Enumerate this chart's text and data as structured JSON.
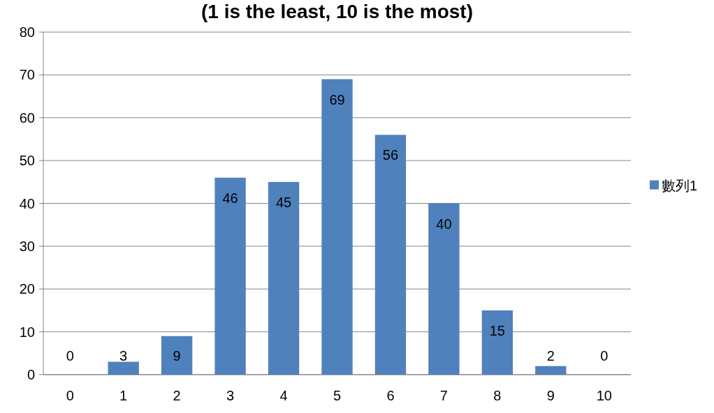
{
  "chart_data": {
    "type": "bar",
    "title": "(1 is the least, 10 is the most)",
    "categories": [
      "0",
      "1",
      "2",
      "3",
      "4",
      "5",
      "6",
      "7",
      "8",
      "9",
      "10"
    ],
    "series": [
      {
        "name": "數列1",
        "color": "#4f81bd",
        "values": [
          0,
          3,
          9,
          46,
          45,
          69,
          56,
          40,
          15,
          2,
          0
        ]
      }
    ],
    "ylim": [
      0,
      80
    ],
    "yticks": [
      0,
      10,
      20,
      30,
      40,
      50,
      60,
      70,
      80
    ],
    "grid": "y",
    "legend": "right",
    "data_labels": true
  }
}
